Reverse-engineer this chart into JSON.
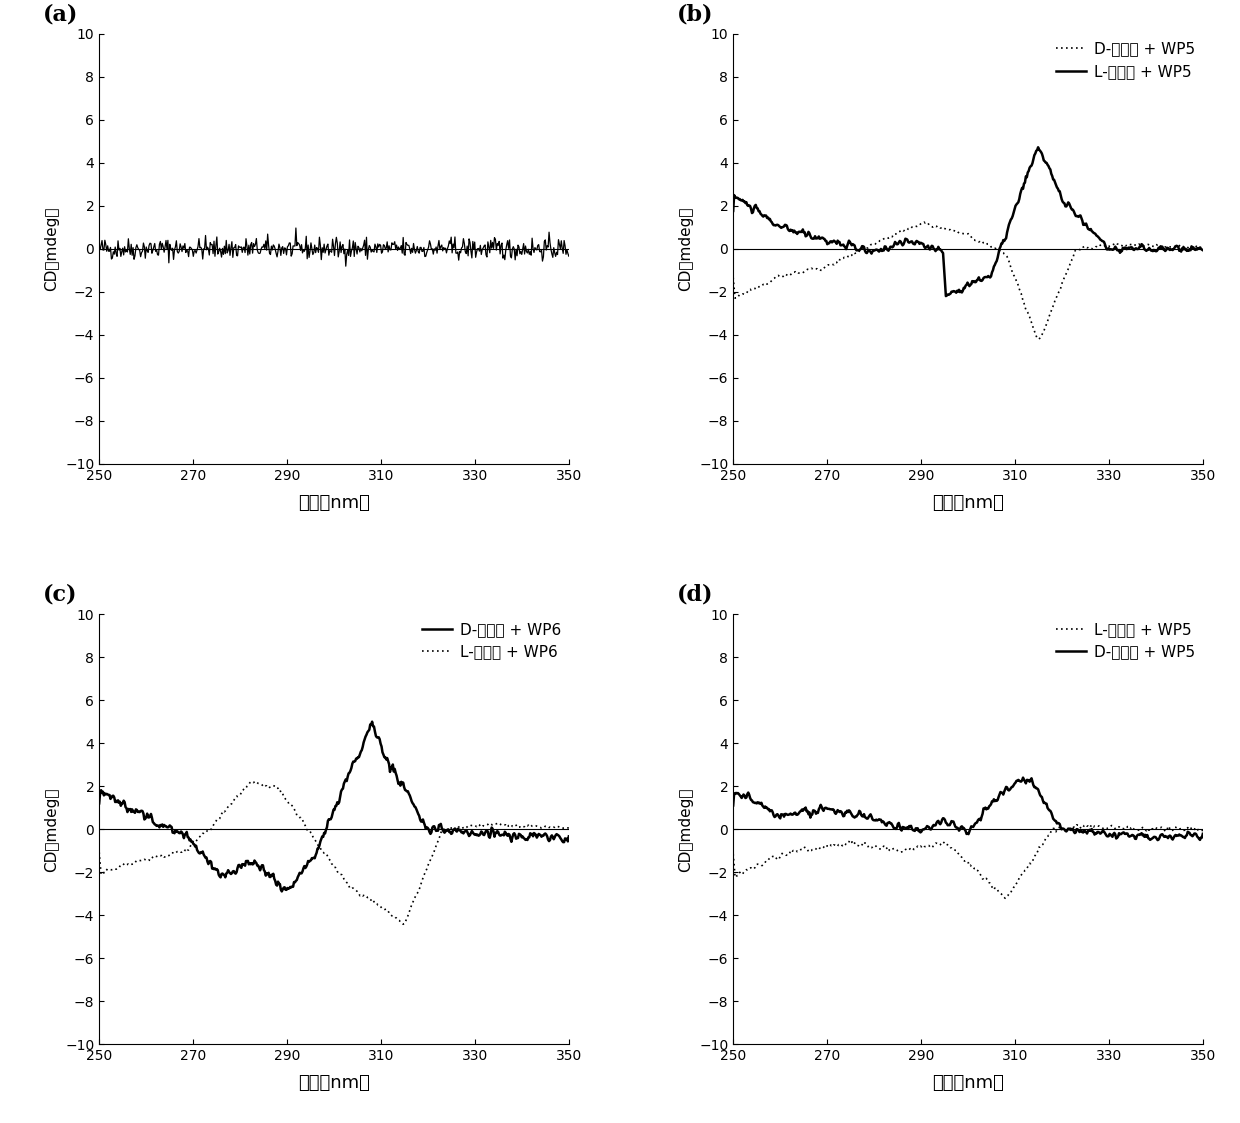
{
  "xlim": [
    250,
    350
  ],
  "ylim": [
    -10,
    10
  ],
  "xlabel": "波长（nm）",
  "ylabel": "CD（mdeg）",
  "yticks": [
    -10,
    -8,
    -6,
    -4,
    -2,
    0,
    2,
    4,
    6,
    8,
    10
  ],
  "xticks": [
    250,
    270,
    290,
    310,
    330,
    350
  ],
  "panels": [
    "(a)",
    "(b)",
    "(c)",
    "(d)"
  ],
  "legends": {
    "b": [
      {
        "label": "D-精氨酸 + WP5",
        "style": "dotted"
      },
      {
        "label": "L-精氨酸 + WP5",
        "style": "solid"
      }
    ],
    "c": [
      {
        "label": "D-精氨酸 + WP6",
        "style": "solid"
      },
      {
        "label": "L-精氨酸 + WP6",
        "style": "dotted"
      }
    ],
    "d": [
      {
        "label": "L-赖氨酸 + WP5",
        "style": "dotted"
      },
      {
        "label": "D-赖氨酸 + WP5",
        "style": "solid"
      }
    ]
  }
}
